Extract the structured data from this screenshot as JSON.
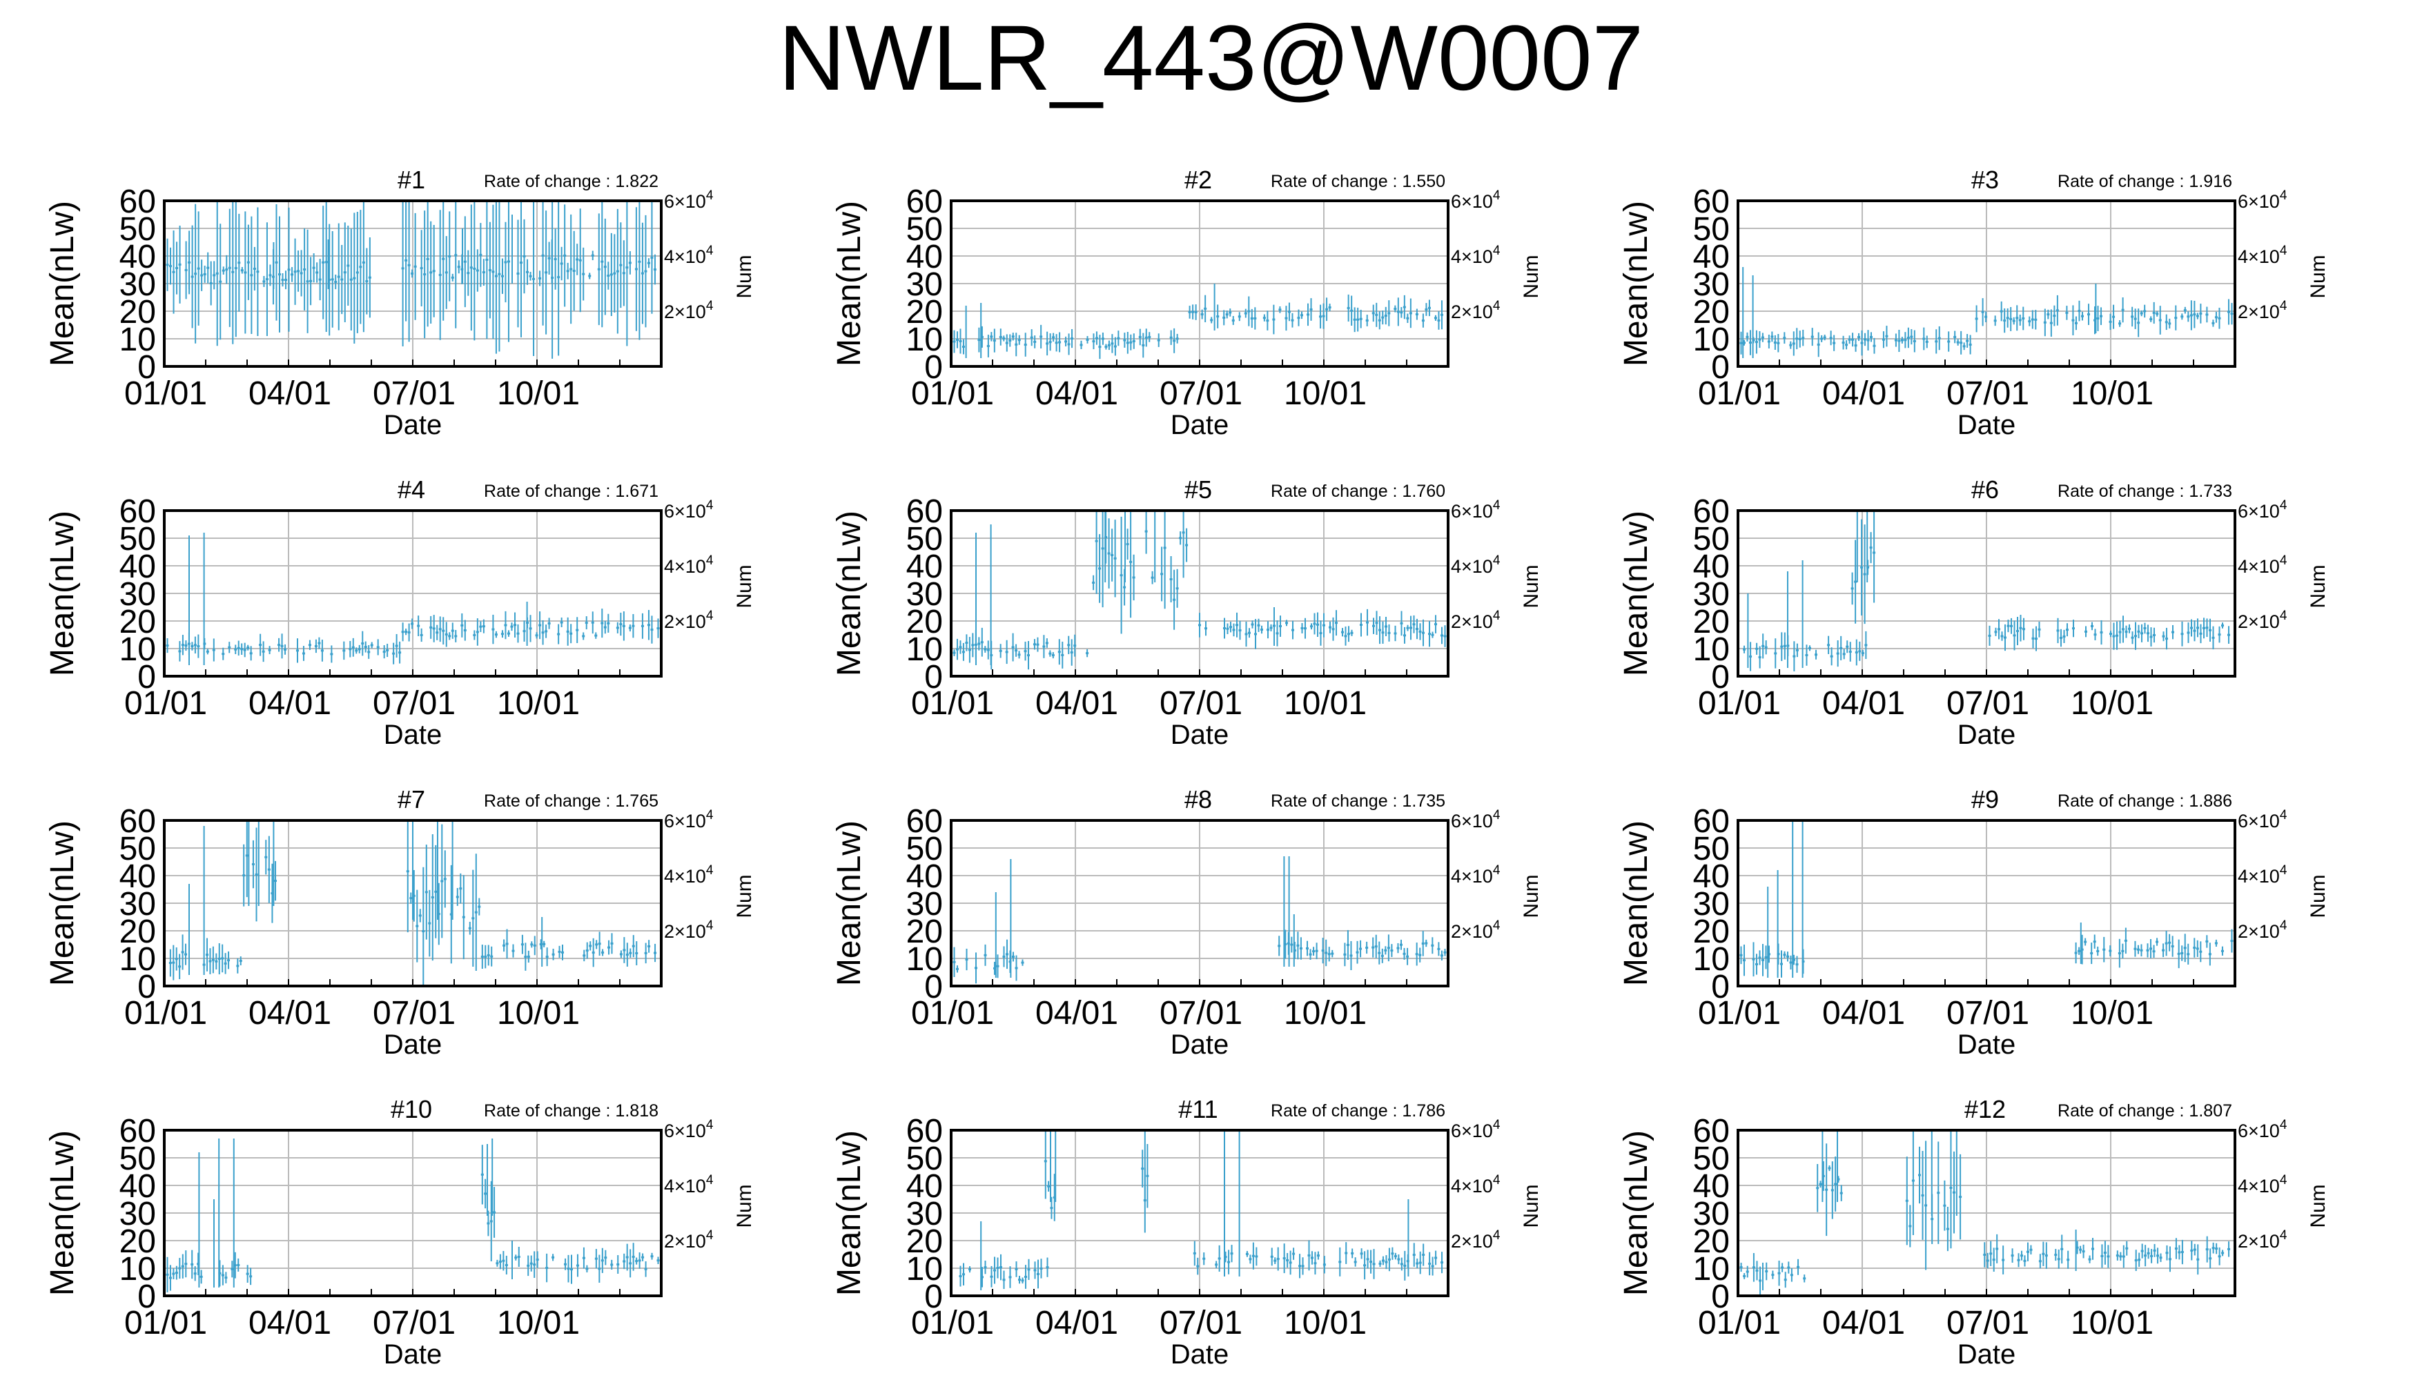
{
  "title": "NWLR_443@W0007",
  "colors": {
    "series": "#3aa0cc",
    "grid": "#bbbbbb",
    "axis": "#000000"
  },
  "shared_axes": {
    "xlabel": "Date",
    "ylabel": "Mean(nLw)",
    "y2label": "Num",
    "yticks": [
      "0",
      "10",
      "20",
      "30",
      "40",
      "50",
      "60"
    ],
    "xticks": [
      "01/01",
      "04/01",
      "07/01",
      "10/01"
    ],
    "y2ticks": [
      {
        "base": "2",
        "exp": "4"
      },
      {
        "base": "4",
        "exp": "4"
      },
      {
        "base": "6",
        "exp": "4"
      }
    ],
    "times_symbol": "×10",
    "rate_prefix": "Rate of change : "
  },
  "chart_data": [
    {
      "type": "line",
      "title": "#1",
      "rate_of_change": "1.822",
      "xlabel": "Date",
      "ylabel": "Mean(nLw)",
      "y2label": "Num",
      "ylim": [
        0,
        60
      ],
      "y2lim": [
        0,
        60000
      ],
      "x": [
        "01/01",
        "04/01",
        "07/01",
        "10/01"
      ],
      "grid": true,
      "segments": [
        {
          "start": 0.0,
          "end": 0.42,
          "base": 34,
          "spread": 8,
          "spikes": [
            [
              0.05,
              45
            ],
            [
              0.22,
              45
            ],
            [
              0.33,
              46
            ]
          ],
          "dense": 0.8
        },
        {
          "start": 0.48,
          "end": 1.0,
          "base": 36,
          "spread": 9,
          "spikes": [
            [
              0.6,
              50
            ],
            [
              0.7,
              55
            ],
            [
              0.78,
              46
            ]
          ],
          "dense": 0.8
        }
      ]
    },
    {
      "type": "line",
      "title": "#2",
      "rate_of_change": "1.550",
      "xlabel": "Date",
      "ylabel": "Mean(nLw)",
      "y2label": "Num",
      "ylim": [
        0,
        60
      ],
      "y2lim": [
        0,
        60000
      ],
      "x": [
        "01/01",
        "04/01",
        "07/01",
        "10/01"
      ],
      "grid": true,
      "segments": [
        {
          "start": 0.0,
          "end": 0.48,
          "base": 9,
          "spread": 4,
          "spikes": [
            [
              0.03,
              22
            ],
            [
              0.06,
              23
            ]
          ],
          "dense": 0.3
        },
        {
          "start": 0.48,
          "end": 1.0,
          "base": 19,
          "spread": 5,
          "spikes": [
            [
              0.53,
              30
            ]
          ],
          "dense": 0.3
        }
      ]
    },
    {
      "type": "line",
      "title": "#3",
      "rate_of_change": "1.916",
      "xlabel": "Date",
      "ylabel": "Mean(nLw)",
      "y2label": "Num",
      "ylim": [
        0,
        60
      ],
      "y2lim": [
        0,
        60000
      ],
      "x": [
        "01/01",
        "04/01",
        "07/01",
        "10/01"
      ],
      "grid": true,
      "segments": [
        {
          "start": 0.0,
          "end": 0.48,
          "base": 9,
          "spread": 4,
          "spikes": [
            [
              0.01,
              36
            ],
            [
              0.03,
              33
            ]
          ],
          "dense": 0.3
        },
        {
          "start": 0.48,
          "end": 1.0,
          "base": 18,
          "spread": 5,
          "spikes": [
            [
              0.72,
              30
            ]
          ],
          "dense": 0.3
        }
      ]
    },
    {
      "type": "line",
      "title": "#4",
      "rate_of_change": "1.671",
      "xlabel": "Date",
      "ylabel": "Mean(nLw)",
      "y2label": "Num",
      "ylim": [
        0,
        60
      ],
      "y2lim": [
        0,
        60000
      ],
      "x": [
        "01/01",
        "04/01",
        "07/01",
        "10/01"
      ],
      "grid": true,
      "segments": [
        {
          "start": 0.0,
          "end": 0.48,
          "base": 10,
          "spread": 4,
          "spikes": [
            [
              0.05,
              51
            ],
            [
              0.08,
              52
            ]
          ],
          "dense": 0.3
        },
        {
          "start": 0.48,
          "end": 1.0,
          "base": 17,
          "spread": 5,
          "spikes": [
            [
              0.73,
              27
            ]
          ],
          "dense": 0.3
        }
      ]
    },
    {
      "type": "line",
      "title": "#5",
      "rate_of_change": "1.760",
      "xlabel": "Date",
      "ylabel": "Mean(nLw)",
      "y2label": "Num",
      "ylim": [
        0,
        60
      ],
      "y2lim": [
        0,
        60000
      ],
      "x": [
        "01/01",
        "04/01",
        "07/01",
        "10/01"
      ],
      "grid": true,
      "segments": [
        {
          "start": 0.0,
          "end": 0.28,
          "base": 10,
          "spread": 5,
          "spikes": [
            [
              0.05,
              52
            ],
            [
              0.08,
              55
            ]
          ],
          "dense": 0.3
        },
        {
          "start": 0.28,
          "end": 0.48,
          "base": 40,
          "spread": 25,
          "spikes": [
            [
              0.31,
              60
            ],
            [
              0.35,
              60
            ],
            [
              0.41,
              60
            ]
          ],
          "dense": 0.4
        },
        {
          "start": 0.5,
          "end": 1.0,
          "base": 17,
          "spread": 5,
          "spikes": [
            [
              0.65,
              25
            ]
          ],
          "dense": 0.3
        }
      ]
    },
    {
      "type": "line",
      "title": "#6",
      "rate_of_change": "1.733",
      "xlabel": "Date",
      "ylabel": "Mean(nLw)",
      "y2label": "Num",
      "ylim": [
        0,
        60
      ],
      "y2lim": [
        0,
        60000
      ],
      "x": [
        "01/01",
        "04/01",
        "07/01",
        "10/01"
      ],
      "grid": true,
      "segments": [
        {
          "start": 0.0,
          "end": 0.27,
          "base": 9,
          "spread": 5,
          "spikes": [
            [
              0.02,
              30
            ],
            [
              0.1,
              38
            ],
            [
              0.13,
              42
            ]
          ],
          "dense": 0.3
        },
        {
          "start": 0.23,
          "end": 0.28,
          "base": 40,
          "spread": 20,
          "spikes": [
            [
              0.24,
              60
            ],
            [
              0.26,
              60
            ]
          ],
          "dense": 0.5
        },
        {
          "start": 0.5,
          "end": 1.0,
          "base": 16,
          "spread": 5,
          "spikes": [],
          "dense": 0.3
        }
      ]
    },
    {
      "type": "line",
      "title": "#7",
      "rate_of_change": "1.765",
      "xlabel": "Date",
      "ylabel": "Mean(nLw)",
      "y2label": "Num",
      "ylim": [
        0,
        60
      ],
      "y2lim": [
        0,
        60000
      ],
      "x": [
        "01/01",
        "04/01",
        "07/01",
        "10/01"
      ],
      "grid": true,
      "segments": [
        {
          "start": 0.0,
          "end": 0.16,
          "base": 10,
          "spread": 6,
          "spikes": [
            [
              0.05,
              37
            ],
            [
              0.08,
              58
            ]
          ],
          "dense": 0.3
        },
        {
          "start": 0.16,
          "end": 0.23,
          "base": 35,
          "spread": 25,
          "spikes": [
            [
              0.17,
              60
            ],
            [
              0.19,
              60
            ],
            [
              0.22,
              60
            ]
          ],
          "dense": 0.4
        },
        {
          "start": 0.49,
          "end": 0.64,
          "base": 30,
          "spread": 25,
          "spikes": [
            [
              0.5,
              60
            ],
            [
              0.55,
              60
            ],
            [
              0.58,
              60
            ]
          ],
          "dense": 0.4
        },
        {
          "start": 0.64,
          "end": 1.0,
          "base": 13,
          "spread": 5,
          "spikes": [
            [
              0.76,
              25
            ]
          ],
          "dense": 0.3
        }
      ]
    },
    {
      "type": "line",
      "title": "#8",
      "rate_of_change": "1.735",
      "xlabel": "Date",
      "ylabel": "Mean(nLw)",
      "y2label": "Num",
      "ylim": [
        0,
        60
      ],
      "y2lim": [
        0,
        60000
      ],
      "x": [
        "01/01",
        "04/01",
        "07/01",
        "10/01"
      ],
      "grid": true,
      "segments": [
        {
          "start": 0.0,
          "end": 0.15,
          "base": 9,
          "spread": 6,
          "spikes": [
            [
              0.09,
              34
            ],
            [
              0.12,
              46
            ]
          ],
          "dense": 0.2
        },
        {
          "start": 0.66,
          "end": 1.0,
          "base": 13,
          "spread": 5,
          "spikes": [
            [
              0.67,
              47
            ],
            [
              0.68,
              47
            ],
            [
              0.69,
              26
            ]
          ],
          "dense": 0.3
        }
      ]
    },
    {
      "type": "line",
      "title": "#9",
      "rate_of_change": "1.886",
      "xlabel": "Date",
      "ylabel": "Mean(nLw)",
      "y2label": "Num",
      "ylim": [
        0,
        60
      ],
      "y2lim": [
        0,
        60000
      ],
      "x": [
        "01/01",
        "04/01",
        "07/01",
        "10/01"
      ],
      "grid": true,
      "segments": [
        {
          "start": 0.0,
          "end": 0.15,
          "base": 9,
          "spread": 6,
          "spikes": [
            [
              0.06,
              36
            ],
            [
              0.08,
              42
            ],
            [
              0.11,
              60
            ],
            [
              0.13,
              60
            ]
          ],
          "dense": 0.3
        },
        {
          "start": 0.68,
          "end": 1.0,
          "base": 14,
          "spread": 5,
          "spikes": [
            [
              0.69,
              23
            ]
          ],
          "dense": 0.3
        }
      ]
    },
    {
      "type": "line",
      "title": "#10",
      "rate_of_change": "1.818",
      "xlabel": "Date",
      "ylabel": "Mean(nLw)",
      "y2label": "Num",
      "ylim": [
        0,
        60
      ],
      "y2lim": [
        0,
        60000
      ],
      "x": [
        "01/01",
        "04/01",
        "07/01",
        "10/01"
      ],
      "grid": true,
      "segments": [
        {
          "start": 0.0,
          "end": 0.18,
          "base": 9,
          "spread": 6,
          "spikes": [
            [
              0.07,
              52
            ],
            [
              0.1,
              35
            ],
            [
              0.11,
              57
            ],
            [
              0.14,
              57
            ]
          ],
          "dense": 0.3
        },
        {
          "start": 0.64,
          "end": 0.67,
          "base": 35,
          "spread": 20,
          "spikes": [
            [
              0.65,
              55
            ],
            [
              0.66,
              57
            ]
          ],
          "dense": 0.6
        },
        {
          "start": 0.67,
          "end": 1.0,
          "base": 12,
          "spread": 5,
          "spikes": [
            [
              0.7,
              20
            ]
          ],
          "dense": 0.3
        }
      ]
    },
    {
      "type": "line",
      "title": "#11",
      "rate_of_change": "1.786",
      "xlabel": "Date",
      "ylabel": "Mean(nLw)",
      "y2label": "Num",
      "ylim": [
        0,
        60
      ],
      "y2lim": [
        0,
        60000
      ],
      "x": [
        "01/01",
        "04/01",
        "07/01",
        "10/01"
      ],
      "grid": true,
      "segments": [
        {
          "start": 0.0,
          "end": 0.2,
          "base": 8,
          "spread": 5,
          "spikes": [
            [
              0.06,
              27
            ]
          ],
          "dense": 0.25
        },
        {
          "start": 0.19,
          "end": 0.22,
          "base": 40,
          "spread": 18,
          "spikes": [
            [
              0.2,
              60
            ],
            [
              0.21,
              60
            ]
          ],
          "dense": 0.5
        },
        {
          "start": 0.38,
          "end": 0.4,
          "base": 40,
          "spread": 18,
          "spikes": [
            [
              0.39,
              60
            ]
          ],
          "dense": 0.5
        },
        {
          "start": 0.49,
          "end": 1.0,
          "base": 13,
          "spread": 5,
          "spikes": [
            [
              0.55,
              60
            ],
            [
              0.58,
              60
            ],
            [
              0.92,
              35
            ]
          ],
          "dense": 0.35
        }
      ]
    },
    {
      "type": "line",
      "title": "#12",
      "rate_of_change": "1.807",
      "xlabel": "Date",
      "ylabel": "Mean(nLw)",
      "y2label": "Num",
      "ylim": [
        0,
        60
      ],
      "y2lim": [
        0,
        60000
      ],
      "x": [
        "01/01",
        "04/01",
        "07/01",
        "10/01"
      ],
      "grid": true,
      "segments": [
        {
          "start": 0.0,
          "end": 0.14,
          "base": 8,
          "spread": 5,
          "spikes": [
            [
              0.05,
              12
            ]
          ],
          "dense": 0.25
        },
        {
          "start": 0.16,
          "end": 0.22,
          "base": 40,
          "spread": 20,
          "spikes": [
            [
              0.17,
              60
            ],
            [
              0.2,
              60
            ]
          ],
          "dense": 0.4
        },
        {
          "start": 0.34,
          "end": 0.46,
          "base": 35,
          "spread": 25,
          "spikes": [
            [
              0.39,
              60
            ],
            [
              0.44,
              60
            ]
          ],
          "dense": 0.3
        },
        {
          "start": 0.49,
          "end": 1.0,
          "base": 15,
          "spread": 5,
          "spikes": [
            [
              0.68,
              24
            ]
          ],
          "dense": 0.3
        }
      ]
    }
  ]
}
